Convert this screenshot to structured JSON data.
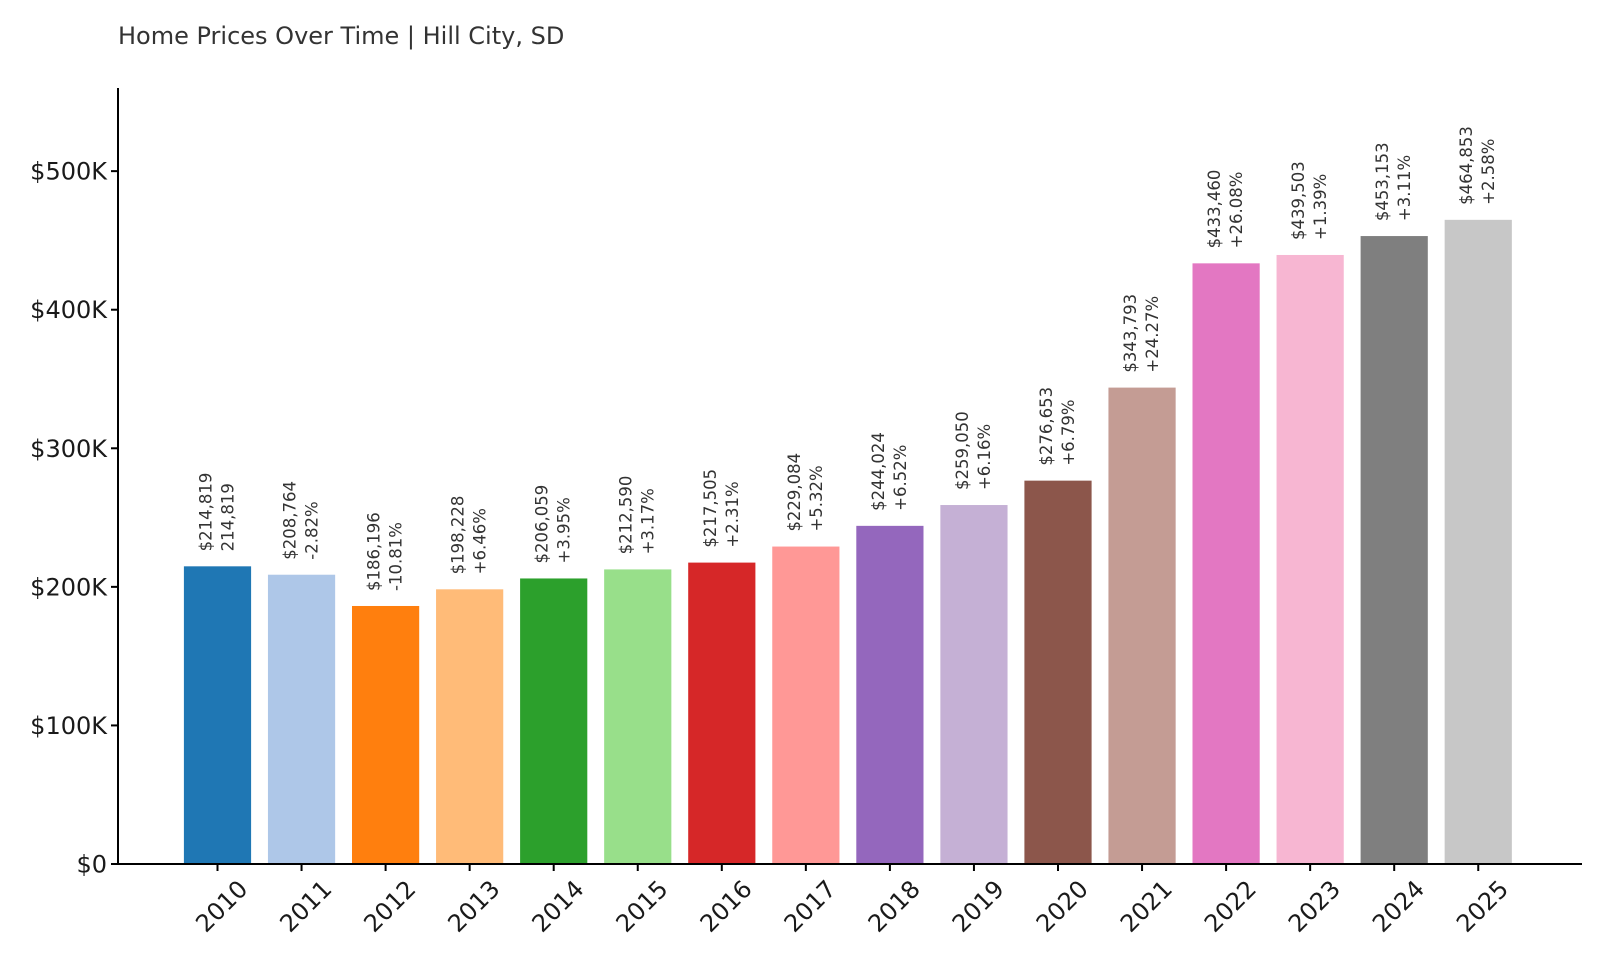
{
  "chart_data": {
    "type": "bar",
    "title": "Home Prices Over Time | Hill City, SD",
    "xlabel": "",
    "ylabel": "",
    "ylim": [
      0,
      560000
    ],
    "yticks": [
      0,
      100000,
      200000,
      300000,
      400000,
      500000
    ],
    "ytick_labels": [
      "$0",
      "$100K",
      "$200K",
      "$300K",
      "$400K",
      "$500K"
    ],
    "grid": false,
    "categories": [
      "2010",
      "2011",
      "2012",
      "2013",
      "2014",
      "2015",
      "2016",
      "2017",
      "2018",
      "2019",
      "2020",
      "2021",
      "2022",
      "2023",
      "2024",
      "2025"
    ],
    "values": [
      214819,
      208764,
      186196,
      198228,
      206059,
      212590,
      217505,
      229084,
      244024,
      259050,
      276653,
      343793,
      433460,
      439503,
      453153,
      464853
    ],
    "value_labels": [
      "$214,819",
      "$208,764",
      "$186,196",
      "$198,228",
      "$206,059",
      "$212,590",
      "$217,505",
      "$229,084",
      "$244,024",
      "$259,050",
      "$276,653",
      "$343,793",
      "$433,460",
      "$439,503",
      "$453,153",
      "$464,853"
    ],
    "change_labels": [
      "214,819",
      "-2.82%",
      "-10.81%",
      "+6.46%",
      "+3.95%",
      "+3.17%",
      "+2.31%",
      "+5.32%",
      "+6.52%",
      "+6.16%",
      "+6.79%",
      "+24.27%",
      "+26.08%",
      "+1.39%",
      "+3.11%",
      "+2.58%"
    ],
    "colors": [
      "#1f77b4",
      "#aec7e8",
      "#ff7f0e",
      "#ffbb78",
      "#2ca02c",
      "#98df8a",
      "#d62728",
      "#ff9896",
      "#9467bd",
      "#c5b0d5",
      "#8c564b",
      "#c49c94",
      "#e377c2",
      "#f7b6d2",
      "#7f7f7f",
      "#c7c7c7"
    ]
  }
}
